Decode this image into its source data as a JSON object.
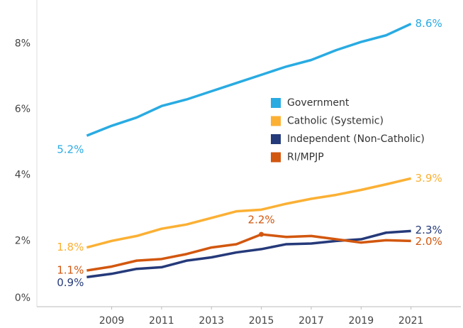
{
  "chart_data": {
    "type": "line",
    "x": [
      2008,
      2009,
      2010,
      2011,
      2012,
      2013,
      2014,
      2015,
      2016,
      2017,
      2018,
      2019,
      2020,
      2021
    ],
    "series": [
      {
        "name": "Government",
        "color": "#29abe2",
        "values": [
          5.2,
          5.5,
          5.75,
          6.1,
          6.3,
          6.55,
          6.8,
          7.05,
          7.3,
          7.5,
          7.8,
          8.05,
          8.25,
          8.6
        ],
        "value_labels": [
          "5.2%",
          null,
          null,
          null,
          null,
          null,
          null,
          null,
          null,
          null,
          null,
          null,
          null,
          "8.6%"
        ]
      },
      {
        "name": "Catholic (Systemic)",
        "color": "#fbb034",
        "values": [
          1.8,
          2.0,
          2.15,
          2.37,
          2.5,
          2.7,
          2.9,
          2.95,
          3.13,
          3.28,
          3.4,
          3.55,
          3.72,
          3.9
        ],
        "value_labels": [
          "1.8%",
          null,
          null,
          null,
          null,
          null,
          null,
          null,
          null,
          null,
          null,
          null,
          null,
          "3.9%"
        ]
      },
      {
        "name": "Independent (Non-Catholic)",
        "color": "#253a7a",
        "values": [
          0.9,
          1.0,
          1.15,
          1.2,
          1.4,
          1.5,
          1.65,
          1.75,
          1.9,
          1.92,
          2.0,
          2.05,
          2.25,
          2.3
        ],
        "value_labels": [
          "0.9%",
          null,
          null,
          null,
          null,
          null,
          null,
          null,
          null,
          null,
          null,
          null,
          null,
          "2.3%"
        ]
      },
      {
        "name": "RI/MPJP",
        "color": "#d2570f",
        "values": [
          1.1,
          1.22,
          1.4,
          1.45,
          1.6,
          1.8,
          1.9,
          2.2,
          2.12,
          2.15,
          2.05,
          1.95,
          2.02,
          2.0
        ],
        "value_labels": [
          "1.1%",
          null,
          null,
          null,
          null,
          null,
          null,
          "2.2%",
          null,
          null,
          null,
          null,
          null,
          "2.0%"
        ]
      }
    ],
    "xlim": [
      2006,
      2023
    ],
    "xticks": [
      2009,
      2011,
      2013,
      2015,
      2017,
      2019,
      2021
    ],
    "ylim": [
      0,
      9
    ],
    "yticks": [
      {
        "value": 0,
        "label": "0%"
      },
      {
        "value": 2,
        "label": "2%"
      },
      {
        "value": 4,
        "label": "4%"
      },
      {
        "value": 6,
        "label": "6%"
      },
      {
        "value": 8,
        "label": "8%"
      }
    ],
    "grid": false
  }
}
